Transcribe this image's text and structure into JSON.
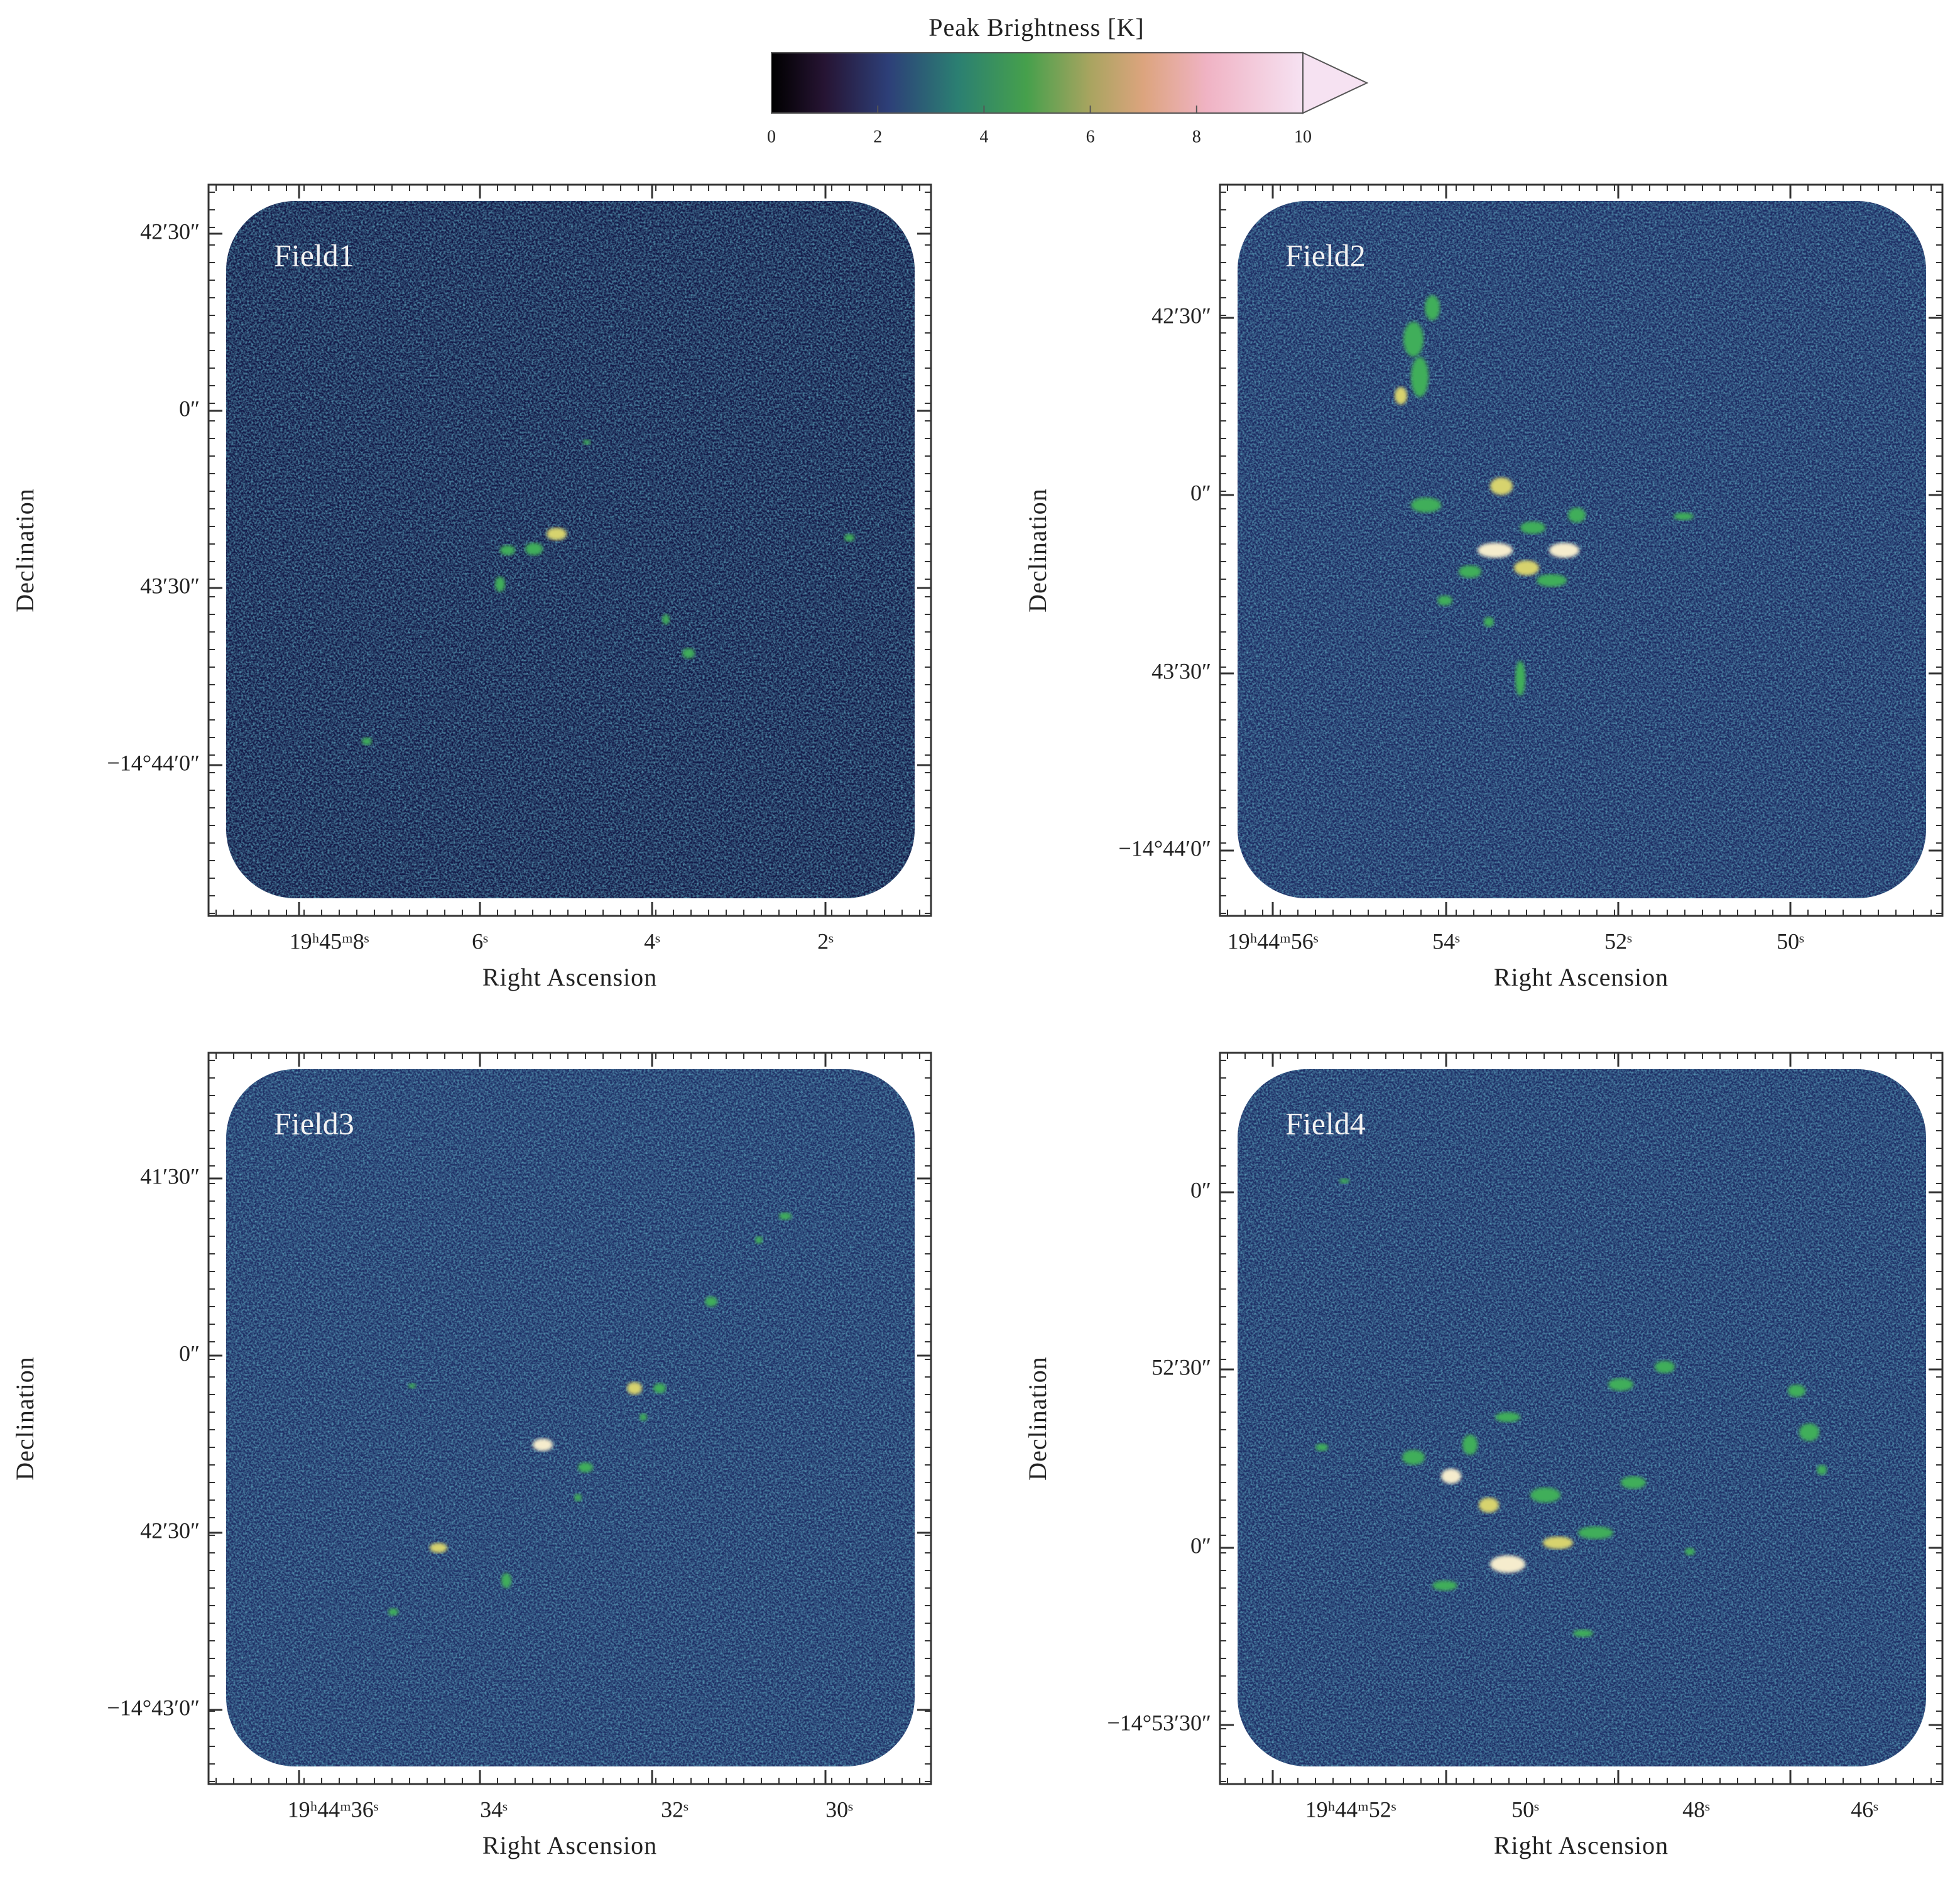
{
  "colorbar": {
    "title": "Peak Brightness [K]",
    "range": [
      0,
      10
    ],
    "ticks": [
      0,
      2,
      4,
      6,
      8,
      10
    ]
  },
  "panels": [
    {
      "label": "Field1",
      "x_label": "Right Ascension",
      "y_label": "Declination",
      "xticks": [
        "19ʰ45ᵐ8ˢ",
        "6ˢ",
        "4ˢ",
        "2ˢ"
      ],
      "yticks": [
        "42′30″",
        "0″",
        "43′30″",
        "−14°44′0″"
      ]
    },
    {
      "label": "Field2",
      "x_label": "Right Ascension",
      "y_label": "Declination",
      "xticks": [
        "19ʰ44ᵐ56ˢ",
        "54ˢ",
        "52ˢ",
        "50ˢ"
      ],
      "yticks": [
        "42′30″",
        "0″",
        "43′30″",
        "−14°44′0″"
      ]
    },
    {
      "label": "Field3",
      "x_label": "Right Ascension",
      "y_label": "Declination",
      "xticks": [
        "19ʰ44ᵐ36ˢ",
        "34ˢ",
        "32ˢ",
        "30ˢ"
      ],
      "yticks": [
        "41′30″",
        "0″",
        "42′30″",
        "−14°43′0″"
      ]
    },
    {
      "label": "Field4",
      "x_label": "Right Ascension",
      "y_label": "Declination",
      "xticks": [
        "19ʰ44ᵐ52ˢ",
        "50ˢ",
        "48ˢ",
        "46ˢ"
      ],
      "yticks": [
        "0″",
        "52′30″",
        "0″",
        "−14°53′30″"
      ]
    }
  ]
}
